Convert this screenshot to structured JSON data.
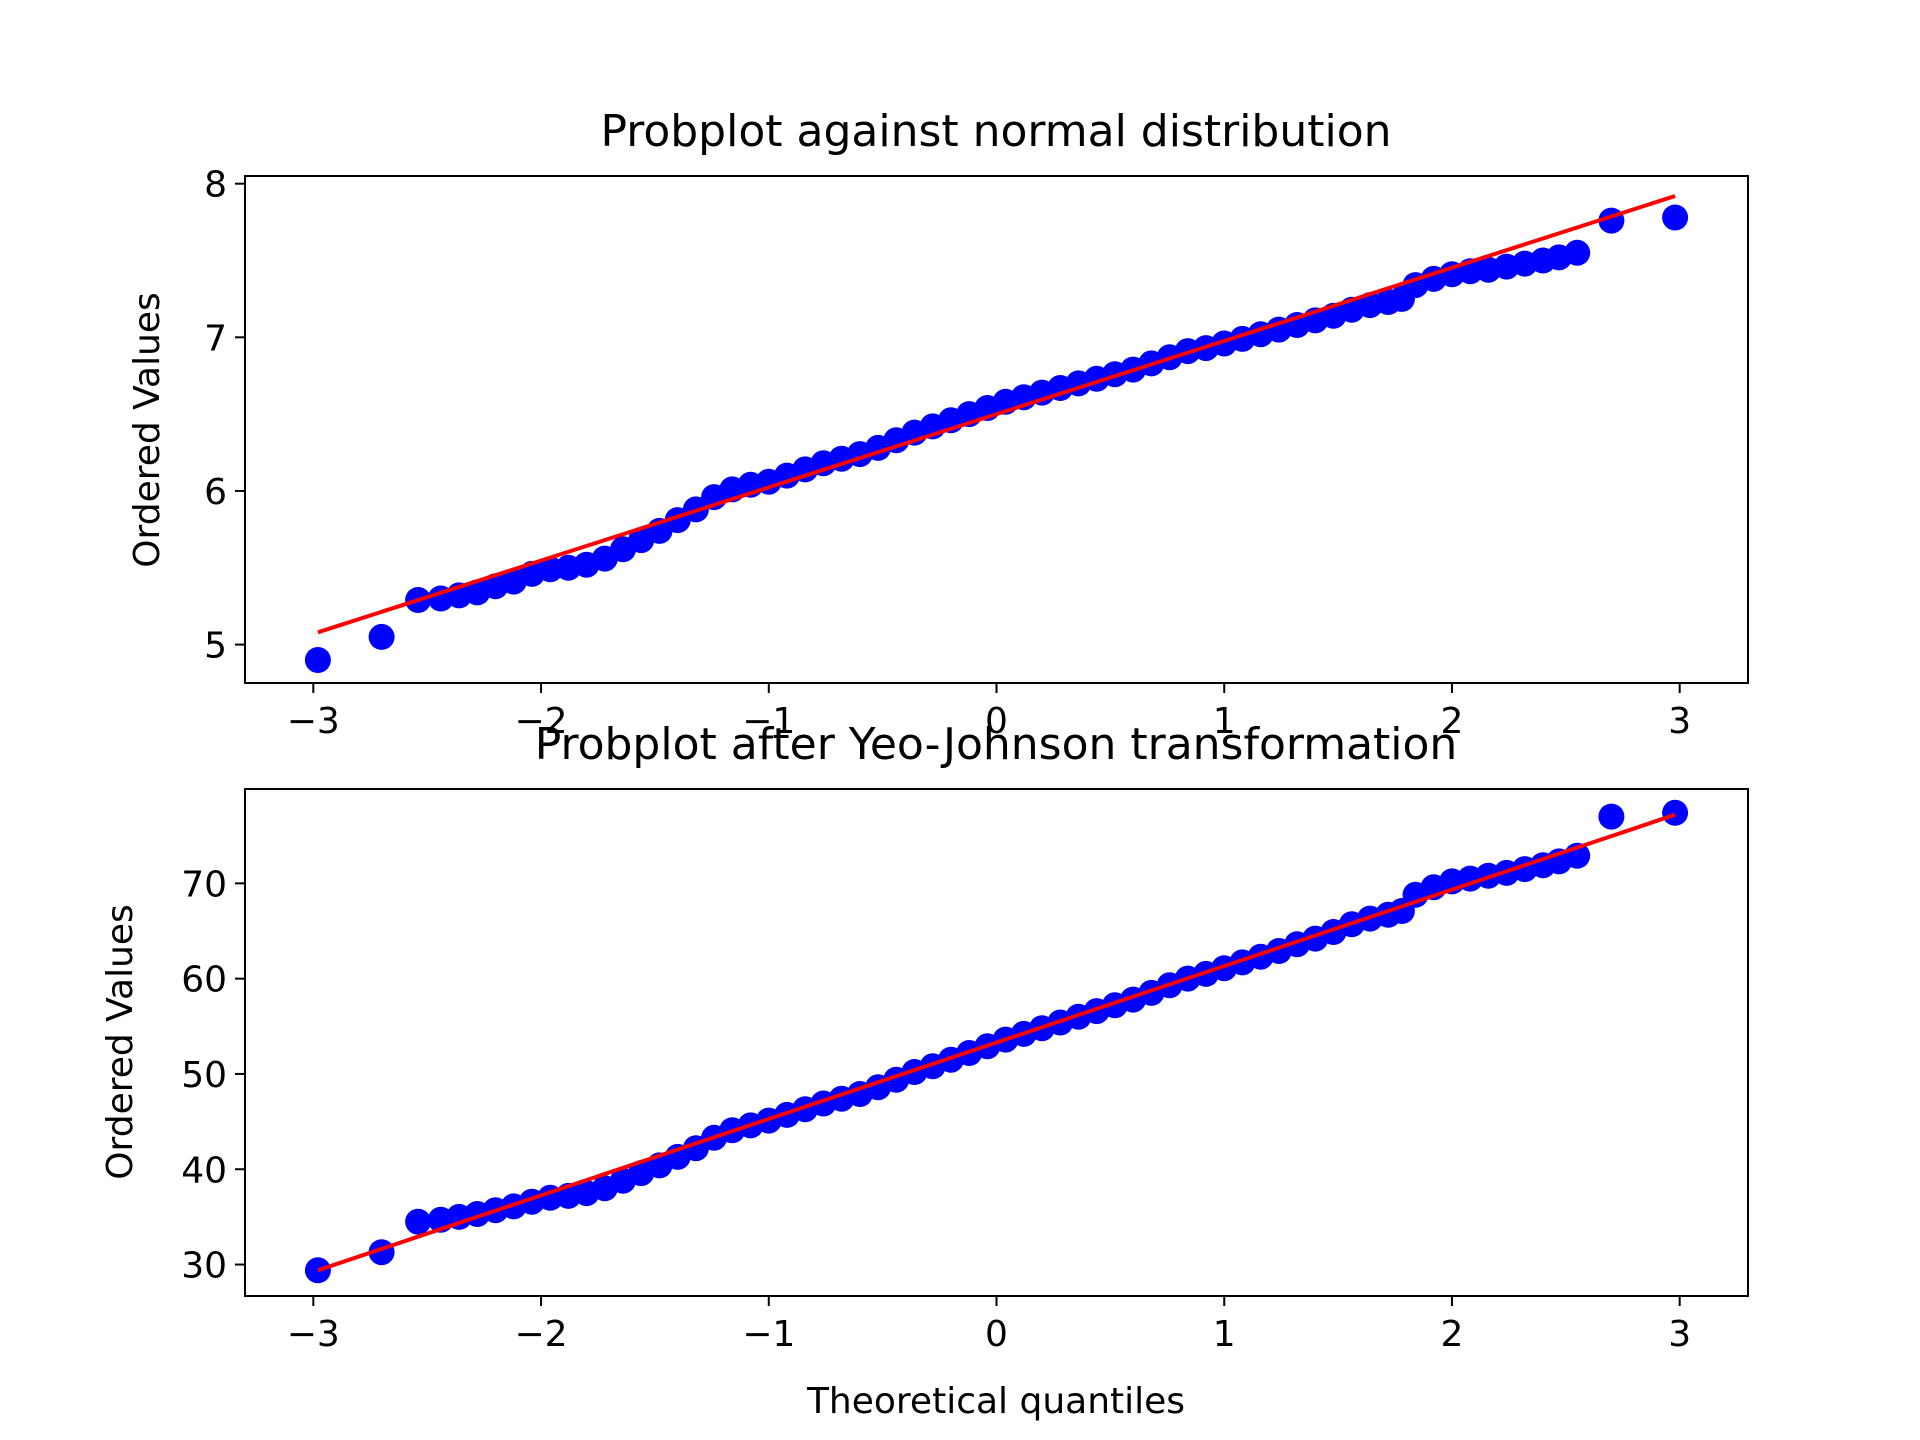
{
  "chart_data": [
    {
      "type": "scatter",
      "title": "Probplot against normal distribution",
      "xlabel": "",
      "ylabel": "Ordered Values",
      "xlim": [
        -3.3,
        3.3
      ],
      "ylim": [
        4.75,
        8.05
      ],
      "x_ticks": [
        -3,
        -2,
        -1,
        0,
        1,
        2,
        3
      ],
      "x_tick_labels": [
        "−3",
        "−2",
        "−1",
        "0",
        "1",
        "2",
        "3"
      ],
      "y_ticks": [
        5,
        6,
        7,
        8
      ],
      "y_tick_labels": [
        "5",
        "6",
        "7",
        "8"
      ],
      "grid": false,
      "marker_color": "#0000ff",
      "line_color": "#ff0000",
      "fit_line": {
        "x": [
          -2.98,
          2.98
        ],
        "y": [
          5.08,
          7.92
        ]
      },
      "series": [
        {
          "points": [
            [
              -2.98,
              4.9
            ],
            [
              -2.7,
              5.05
            ],
            [
              -2.54,
              5.29
            ],
            [
              -2.44,
              5.3
            ],
            [
              -2.36,
              5.32
            ],
            [
              -2.28,
              5.34
            ],
            [
              -2.2,
              5.38
            ],
            [
              -2.12,
              5.41
            ],
            [
              -2.04,
              5.46
            ],
            [
              -1.96,
              5.49
            ],
            [
              -1.88,
              5.5
            ],
            [
              -1.8,
              5.52
            ],
            [
              -1.72,
              5.56
            ],
            [
              -1.64,
              5.62
            ],
            [
              -1.56,
              5.68
            ],
            [
              -1.48,
              5.74
            ],
            [
              -1.4,
              5.81
            ],
            [
              -1.32,
              5.88
            ],
            [
              -1.24,
              5.96
            ],
            [
              -1.16,
              6.01
            ],
            [
              -1.08,
              6.04
            ],
            [
              -1.0,
              6.06
            ],
            [
              -0.92,
              6.1
            ],
            [
              -0.84,
              6.14
            ],
            [
              -0.76,
              6.18
            ],
            [
              -0.68,
              6.21
            ],
            [
              -0.6,
              6.24
            ],
            [
              -0.52,
              6.28
            ],
            [
              -0.44,
              6.33
            ],
            [
              -0.36,
              6.38
            ],
            [
              -0.28,
              6.42
            ],
            [
              -0.2,
              6.46
            ],
            [
              -0.12,
              6.5
            ],
            [
              -0.04,
              6.54
            ],
            [
              0.04,
              6.58
            ],
            [
              0.12,
              6.61
            ],
            [
              0.2,
              6.64
            ],
            [
              0.28,
              6.67
            ],
            [
              0.36,
              6.7
            ],
            [
              0.44,
              6.73
            ],
            [
              0.52,
              6.76
            ],
            [
              0.6,
              6.79
            ],
            [
              0.68,
              6.83
            ],
            [
              0.76,
              6.87
            ],
            [
              0.84,
              6.91
            ],
            [
              0.92,
              6.93
            ],
            [
              1.0,
              6.96
            ],
            [
              1.08,
              6.99
            ],
            [
              1.16,
              7.02
            ],
            [
              1.24,
              7.05
            ],
            [
              1.32,
              7.08
            ],
            [
              1.4,
              7.11
            ],
            [
              1.48,
              7.14
            ],
            [
              1.56,
              7.18
            ],
            [
              1.64,
              7.21
            ],
            [
              1.72,
              7.23
            ],
            [
              1.78,
              7.25
            ],
            [
              1.84,
              7.34
            ],
            [
              1.92,
              7.38
            ],
            [
              2.0,
              7.41
            ],
            [
              2.08,
              7.43
            ],
            [
              2.16,
              7.44
            ],
            [
              2.24,
              7.46
            ],
            [
              2.32,
              7.48
            ],
            [
              2.4,
              7.5
            ],
            [
              2.47,
              7.52
            ],
            [
              2.55,
              7.55
            ],
            [
              2.7,
              7.76
            ],
            [
              2.98,
              7.78
            ]
          ]
        }
      ]
    },
    {
      "type": "scatter",
      "title": "Probplot after Yeo-Johnson transformation",
      "xlabel": "Theoretical quantiles",
      "ylabel": "Ordered Values",
      "xlim": [
        -3.3,
        3.3
      ],
      "ylim": [
        26.7,
        79.9
      ],
      "x_ticks": [
        -3,
        -2,
        -1,
        0,
        1,
        2,
        3
      ],
      "x_tick_labels": [
        "−3",
        "−2",
        "−1",
        "0",
        "1",
        "2",
        "3"
      ],
      "y_ticks": [
        30,
        40,
        50,
        60,
        70
      ],
      "y_tick_labels": [
        "30",
        "40",
        "50",
        "60",
        "70"
      ],
      "grid": false,
      "marker_color": "#0000ff",
      "line_color": "#ff0000",
      "fit_line": {
        "x": [
          -2.98,
          2.98
        ],
        "y": [
          29.4,
          77.2
        ]
      },
      "series": [
        {
          "points": [
            [
              -2.98,
              29.4
            ],
            [
              -2.7,
              31.3
            ],
            [
              -2.54,
              34.5
            ],
            [
              -2.44,
              34.7
            ],
            [
              -2.36,
              35.0
            ],
            [
              -2.28,
              35.3
            ],
            [
              -2.2,
              35.7
            ],
            [
              -2.12,
              36.1
            ],
            [
              -2.04,
              36.6
            ],
            [
              -1.96,
              37.0
            ],
            [
              -1.88,
              37.2
            ],
            [
              -1.8,
              37.5
            ],
            [
              -1.72,
              38.0
            ],
            [
              -1.64,
              38.8
            ],
            [
              -1.56,
              39.6
            ],
            [
              -1.48,
              40.4
            ],
            [
              -1.4,
              41.3
            ],
            [
              -1.32,
              42.2
            ],
            [
              -1.24,
              43.3
            ],
            [
              -1.16,
              44.1
            ],
            [
              -1.08,
              44.6
            ],
            [
              -1.0,
              45.1
            ],
            [
              -0.92,
              45.7
            ],
            [
              -0.84,
              46.3
            ],
            [
              -0.76,
              46.9
            ],
            [
              -0.68,
              47.4
            ],
            [
              -0.6,
              47.9
            ],
            [
              -0.52,
              48.6
            ],
            [
              -0.44,
              49.4
            ],
            [
              -0.36,
              50.2
            ],
            [
              -0.28,
              50.8
            ],
            [
              -0.2,
              51.5
            ],
            [
              -0.12,
              52.2
            ],
            [
              -0.04,
              52.9
            ],
            [
              0.04,
              53.6
            ],
            [
              0.12,
              54.2
            ],
            [
              0.2,
              54.8
            ],
            [
              0.28,
              55.4
            ],
            [
              0.36,
              56.0
            ],
            [
              0.44,
              56.6
            ],
            [
              0.52,
              57.2
            ],
            [
              0.6,
              57.8
            ],
            [
              0.68,
              58.5
            ],
            [
              0.76,
              59.3
            ],
            [
              0.84,
              60.0
            ],
            [
              0.92,
              60.5
            ],
            [
              1.0,
              61.1
            ],
            [
              1.08,
              61.7
            ],
            [
              1.16,
              62.3
            ],
            [
              1.24,
              62.9
            ],
            [
              1.32,
              63.6
            ],
            [
              1.4,
              64.2
            ],
            [
              1.48,
              64.9
            ],
            [
              1.56,
              65.7
            ],
            [
              1.64,
              66.3
            ],
            [
              1.72,
              66.7
            ],
            [
              1.78,
              67.1
            ],
            [
              1.84,
              68.8
            ],
            [
              1.92,
              69.6
            ],
            [
              2.0,
              70.2
            ],
            [
              2.08,
              70.5
            ],
            [
              2.16,
              70.8
            ],
            [
              2.24,
              71.1
            ],
            [
              2.32,
              71.5
            ],
            [
              2.4,
              71.9
            ],
            [
              2.47,
              72.3
            ],
            [
              2.55,
              72.9
            ],
            [
              2.7,
              77.0
            ],
            [
              2.98,
              77.4
            ]
          ]
        }
      ]
    }
  ]
}
